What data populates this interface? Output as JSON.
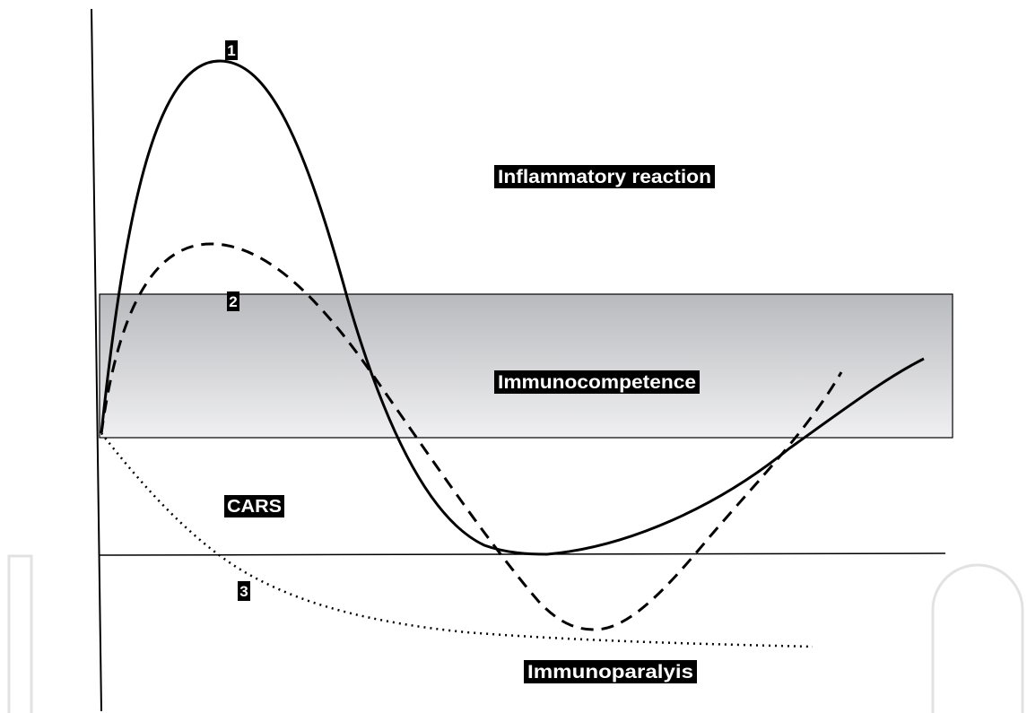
{
  "diagram": {
    "regions": {
      "inflammatory": "Inflammatory reaction",
      "immunocompetence": "Immunocompetence",
      "cars": "CARS",
      "immunoparalysis": "Immunoparalyis"
    },
    "curves": [
      {
        "id": "1",
        "label": "1",
        "style": "solid"
      },
      {
        "id": "2",
        "label": "2",
        "style": "dashed"
      },
      {
        "id": "3",
        "label": "3",
        "style": "dotted"
      }
    ],
    "colors": {
      "line": "#000000",
      "band_top": "#b9babe",
      "band_bottom": "#f0f0f2",
      "label_bg": "#000000",
      "label_text": "#ffffff",
      "watermark": "#e2e2e2"
    }
  }
}
